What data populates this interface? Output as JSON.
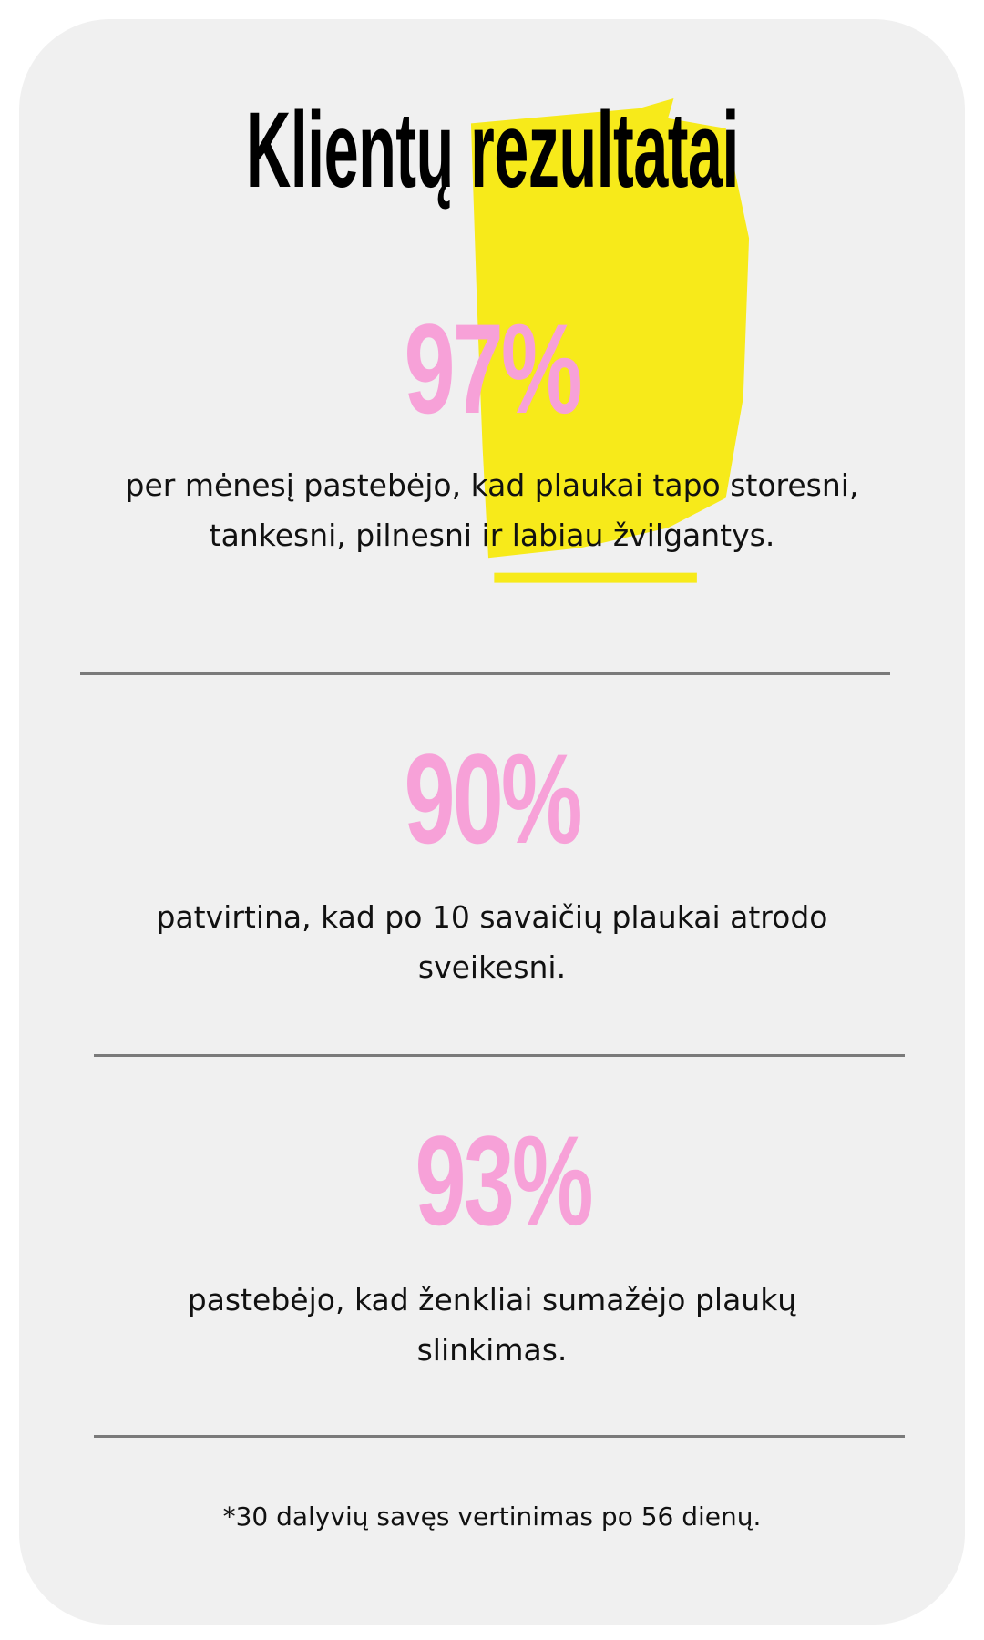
{
  "title": {
    "part1": "Klientų",
    "part2": "rezultatai"
  },
  "colors": {
    "accent_pink": "#f7a1d8",
    "highlight_yellow": "#f7ea1a",
    "card_bg": "#f0f0f0",
    "divider": "#7a7a7a"
  },
  "stats": [
    {
      "value": "97%",
      "text": "per mėnesį pastebėjo, kad plaukai tapo storesni, tankesni, pilnesni ir labiau žvilgantys."
    },
    {
      "value": "90%",
      "text": "patvirtina, kad po 10 savaičių plaukai atrodo sveikesni."
    },
    {
      "value": "93%",
      "text": "pastebėjo, kad ženkliai sumažėjo plaukų slinkimas."
    }
  ],
  "footnote": "*30 dalyvių savęs vertinimas po 56 dienų."
}
